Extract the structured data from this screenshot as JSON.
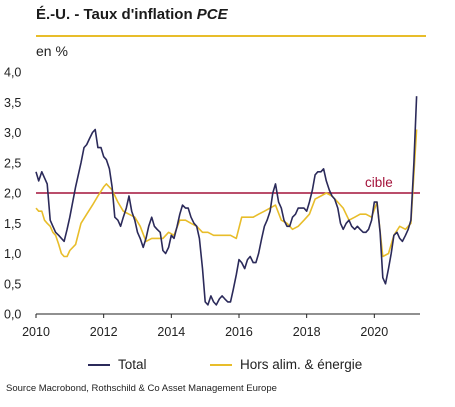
{
  "title": {
    "main": "É.-U. - Taux d'inflation ",
    "emphasis": "PCE"
  },
  "unit_label": "en %",
  "target_label": "cible",
  "source": "Source Macrobond, Rothschild & Co Asset Management Europe",
  "colors": {
    "total": "#2b2a5a",
    "core": "#e8bd2a",
    "target": "#a3123a",
    "accent_rule": "#e8bd2a"
  },
  "legend": {
    "total": "Total",
    "core": "Hors alim. & énergie"
  },
  "chart_data": {
    "type": "line",
    "xlim": [
      2010,
      2021.35
    ],
    "ylim": [
      0,
      4.0
    ],
    "y_ticks": [
      "0,0",
      "0,5",
      "1,0",
      "1,5",
      "2,0",
      "2,5",
      "3,0",
      "3,5",
      "4,0"
    ],
    "x_ticks": [
      "2010",
      "2012",
      "2014",
      "2016",
      "2018",
      "2020"
    ],
    "target": 2.0,
    "series": [
      {
        "name": "Total",
        "color": "#2b2a5a",
        "points": [
          [
            2010.0,
            2.35
          ],
          [
            2010.08,
            2.2
          ],
          [
            2010.17,
            2.35
          ],
          [
            2010.33,
            2.15
          ],
          [
            2010.42,
            1.55
          ],
          [
            2010.5,
            1.45
          ],
          [
            2010.58,
            1.35
          ],
          [
            2010.67,
            1.3
          ],
          [
            2010.83,
            1.2
          ],
          [
            2010.92,
            1.4
          ],
          [
            2011.0,
            1.6
          ],
          [
            2011.17,
            2.1
          ],
          [
            2011.33,
            2.5
          ],
          [
            2011.42,
            2.75
          ],
          [
            2011.5,
            2.8
          ],
          [
            2011.58,
            2.9
          ],
          [
            2011.67,
            3.0
          ],
          [
            2011.75,
            3.05
          ],
          [
            2011.83,
            2.75
          ],
          [
            2011.92,
            2.75
          ],
          [
            2012.0,
            2.6
          ],
          [
            2012.08,
            2.55
          ],
          [
            2012.17,
            2.4
          ],
          [
            2012.25,
            2.1
          ],
          [
            2012.33,
            1.6
          ],
          [
            2012.42,
            1.55
          ],
          [
            2012.5,
            1.45
          ],
          [
            2012.58,
            1.6
          ],
          [
            2012.67,
            1.75
          ],
          [
            2012.75,
            1.95
          ],
          [
            2012.83,
            1.7
          ],
          [
            2012.92,
            1.55
          ],
          [
            2013.0,
            1.35
          ],
          [
            2013.08,
            1.25
          ],
          [
            2013.17,
            1.1
          ],
          [
            2013.25,
            1.25
          ],
          [
            2013.33,
            1.45
          ],
          [
            2013.42,
            1.6
          ],
          [
            2013.5,
            1.45
          ],
          [
            2013.58,
            1.4
          ],
          [
            2013.67,
            1.35
          ],
          [
            2013.75,
            1.05
          ],
          [
            2013.83,
            1.0
          ],
          [
            2013.92,
            1.1
          ],
          [
            2014.0,
            1.3
          ],
          [
            2014.08,
            1.25
          ],
          [
            2014.17,
            1.45
          ],
          [
            2014.25,
            1.65
          ],
          [
            2014.33,
            1.8
          ],
          [
            2014.42,
            1.75
          ],
          [
            2014.5,
            1.75
          ],
          [
            2014.58,
            1.6
          ],
          [
            2014.67,
            1.5
          ],
          [
            2014.75,
            1.45
          ],
          [
            2014.83,
            1.25
          ],
          [
            2014.92,
            0.75
          ],
          [
            2015.0,
            0.2
          ],
          [
            2015.08,
            0.15
          ],
          [
            2015.17,
            0.3
          ],
          [
            2015.25,
            0.2
          ],
          [
            2015.33,
            0.15
          ],
          [
            2015.42,
            0.25
          ],
          [
            2015.5,
            0.3
          ],
          [
            2015.58,
            0.25
          ],
          [
            2015.67,
            0.2
          ],
          [
            2015.75,
            0.2
          ],
          [
            2015.83,
            0.4
          ],
          [
            2015.92,
            0.65
          ],
          [
            2016.0,
            0.9
          ],
          [
            2016.08,
            0.85
          ],
          [
            2016.17,
            0.75
          ],
          [
            2016.25,
            0.9
          ],
          [
            2016.33,
            0.95
          ],
          [
            2016.42,
            0.85
          ],
          [
            2016.5,
            0.85
          ],
          [
            2016.58,
            1.0
          ],
          [
            2016.67,
            1.25
          ],
          [
            2016.75,
            1.45
          ],
          [
            2016.83,
            1.55
          ],
          [
            2016.92,
            1.7
          ],
          [
            2017.0,
            2.0
          ],
          [
            2017.08,
            2.15
          ],
          [
            2017.17,
            1.85
          ],
          [
            2017.25,
            1.75
          ],
          [
            2017.33,
            1.55
          ],
          [
            2017.42,
            1.45
          ],
          [
            2017.5,
            1.45
          ],
          [
            2017.58,
            1.6
          ],
          [
            2017.67,
            1.65
          ],
          [
            2017.75,
            1.75
          ],
          [
            2017.83,
            1.75
          ],
          [
            2017.92,
            1.75
          ],
          [
            2018.0,
            1.7
          ],
          [
            2018.08,
            1.85
          ],
          [
            2018.17,
            2.05
          ],
          [
            2018.25,
            2.3
          ],
          [
            2018.33,
            2.35
          ],
          [
            2018.42,
            2.35
          ],
          [
            2018.5,
            2.4
          ],
          [
            2018.58,
            2.2
          ],
          [
            2018.67,
            2.05
          ],
          [
            2018.75,
            1.95
          ],
          [
            2018.83,
            1.9
          ],
          [
            2018.92,
            1.75
          ],
          [
            2019.0,
            1.5
          ],
          [
            2019.08,
            1.4
          ],
          [
            2019.17,
            1.5
          ],
          [
            2019.25,
            1.55
          ],
          [
            2019.33,
            1.45
          ],
          [
            2019.42,
            1.4
          ],
          [
            2019.5,
            1.45
          ],
          [
            2019.58,
            1.4
          ],
          [
            2019.67,
            1.35
          ],
          [
            2019.75,
            1.35
          ],
          [
            2019.83,
            1.4
          ],
          [
            2019.92,
            1.55
          ],
          [
            2020.0,
            1.85
          ],
          [
            2020.08,
            1.85
          ],
          [
            2020.17,
            1.35
          ],
          [
            2020.25,
            0.6
          ],
          [
            2020.33,
            0.5
          ],
          [
            2020.42,
            0.75
          ],
          [
            2020.5,
            1.0
          ],
          [
            2020.58,
            1.3
          ],
          [
            2020.67,
            1.35
          ],
          [
            2020.75,
            1.25
          ],
          [
            2020.83,
            1.2
          ],
          [
            2020.92,
            1.3
          ],
          [
            2021.0,
            1.4
          ],
          [
            2021.08,
            1.55
          ],
          [
            2021.17,
            2.5
          ],
          [
            2021.25,
            3.6
          ]
        ]
      },
      {
        "name": "Hors alim. & énergie",
        "color": "#e8bd2a",
        "points": [
          [
            2010.0,
            1.75
          ],
          [
            2010.08,
            1.7
          ],
          [
            2010.17,
            1.7
          ],
          [
            2010.25,
            1.55
          ],
          [
            2010.33,
            1.5
          ],
          [
            2010.42,
            1.45
          ],
          [
            2010.5,
            1.35
          ],
          [
            2010.58,
            1.3
          ],
          [
            2010.67,
            1.15
          ],
          [
            2010.75,
            1.0
          ],
          [
            2010.83,
            0.95
          ],
          [
            2010.92,
            0.95
          ],
          [
            2011.0,
            1.05
          ],
          [
            2011.17,
            1.15
          ],
          [
            2011.33,
            1.5
          ],
          [
            2011.5,
            1.65
          ],
          [
            2011.67,
            1.8
          ],
          [
            2011.83,
            1.95
          ],
          [
            2012.0,
            2.1
          ],
          [
            2012.08,
            2.15
          ],
          [
            2012.25,
            2.05
          ],
          [
            2012.42,
            1.85
          ],
          [
            2012.58,
            1.7
          ],
          [
            2012.75,
            1.65
          ],
          [
            2012.92,
            1.6
          ],
          [
            2013.08,
            1.45
          ],
          [
            2013.25,
            1.2
          ],
          [
            2013.42,
            1.25
          ],
          [
            2013.58,
            1.25
          ],
          [
            2013.75,
            1.25
          ],
          [
            2013.92,
            1.35
          ],
          [
            2014.08,
            1.3
          ],
          [
            2014.25,
            1.55
          ],
          [
            2014.42,
            1.55
          ],
          [
            2014.58,
            1.5
          ],
          [
            2014.75,
            1.45
          ],
          [
            2014.92,
            1.35
          ],
          [
            2015.08,
            1.35
          ],
          [
            2015.25,
            1.3
          ],
          [
            2015.42,
            1.3
          ],
          [
            2015.58,
            1.3
          ],
          [
            2015.75,
            1.3
          ],
          [
            2015.92,
            1.25
          ],
          [
            2016.08,
            1.6
          ],
          [
            2016.25,
            1.6
          ],
          [
            2016.42,
            1.6
          ],
          [
            2016.58,
            1.65
          ],
          [
            2016.75,
            1.7
          ],
          [
            2016.92,
            1.75
          ],
          [
            2017.08,
            1.8
          ],
          [
            2017.25,
            1.55
          ],
          [
            2017.42,
            1.5
          ],
          [
            2017.58,
            1.4
          ],
          [
            2017.75,
            1.45
          ],
          [
            2017.92,
            1.55
          ],
          [
            2018.08,
            1.65
          ],
          [
            2018.25,
            1.9
          ],
          [
            2018.42,
            1.95
          ],
          [
            2018.58,
            2.0
          ],
          [
            2018.75,
            1.95
          ],
          [
            2018.92,
            1.85
          ],
          [
            2019.08,
            1.75
          ],
          [
            2019.25,
            1.55
          ],
          [
            2019.42,
            1.6
          ],
          [
            2019.58,
            1.65
          ],
          [
            2019.75,
            1.65
          ],
          [
            2019.92,
            1.6
          ],
          [
            2020.08,
            1.85
          ],
          [
            2020.25,
            0.95
          ],
          [
            2020.42,
            1.0
          ],
          [
            2020.58,
            1.3
          ],
          [
            2020.75,
            1.45
          ],
          [
            2020.92,
            1.4
          ],
          [
            2021.08,
            1.5
          ],
          [
            2021.25,
            3.05
          ]
        ]
      }
    ]
  }
}
